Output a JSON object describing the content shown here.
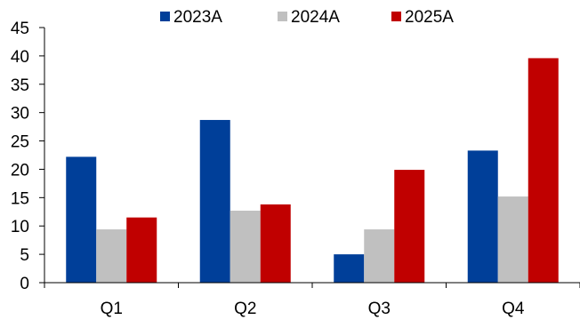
{
  "chart_data": {
    "type": "bar",
    "categories": [
      "Q1",
      "Q2",
      "Q3",
      "Q4"
    ],
    "series": [
      {
        "name": "2023A",
        "color": "#003f99",
        "values": [
          22.2,
          28.7,
          5.0,
          23.3
        ]
      },
      {
        "name": "2024A",
        "color": "#c0c0c0",
        "values": [
          9.4,
          12.7,
          9.4,
          15.2
        ]
      },
      {
        "name": "2025A",
        "color": "#c00000",
        "values": [
          11.5,
          13.8,
          19.9,
          39.6
        ]
      }
    ],
    "yticks": [
      "0",
      "5",
      "10",
      "15",
      "20",
      "25",
      "30",
      "35",
      "40",
      "45"
    ],
    "ylim": [
      0,
      45
    ],
    "grid": false,
    "legend_position": "top"
  }
}
